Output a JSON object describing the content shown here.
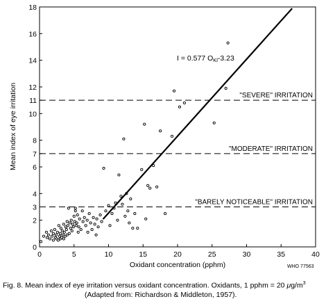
{
  "chart_data": {
    "type": "scatter",
    "xlabel": "Oxidant concentration (pphm)",
    "ylabel": "Mean index of eye irritation",
    "xlim": [
      0,
      40
    ],
    "ylim": [
      0,
      18
    ],
    "x_ticks": [
      0,
      5,
      10,
      15,
      20,
      25,
      30,
      35,
      40
    ],
    "y_ticks": [
      0,
      2,
      3,
      4,
      6,
      7,
      8,
      10,
      11,
      12,
      14,
      16,
      18
    ],
    "grid": false,
    "legend": "none",
    "regression_label": "I = 0.577 O",
    "regression_subscript": "Kl",
    "regression_tail": "-3.23",
    "regression_line": {
      "slope": 0.577,
      "intercept": -3.23,
      "x_start": 9.2,
      "x_end": 36.6
    },
    "thresholds": [
      {
        "y": 3,
        "label": "\"BARELY NOTICEABLE\" IRRITATION"
      },
      {
        "y": 7,
        "label": "\"MODERATE\" IRRITATION"
      },
      {
        "y": 11,
        "label": "\"SEVERE\" IRRITATION"
      }
    ],
    "watermark": "WHO 77563",
    "series": [
      {
        "points": [
          [
            0.2,
            0.4
          ],
          [
            0.6,
            0.8
          ],
          [
            1.0,
            1.1
          ],
          [
            1.1,
            0.7
          ],
          [
            1.3,
            0.9
          ],
          [
            1.5,
            0.6
          ],
          [
            1.7,
            1.2
          ],
          [
            1.8,
            0.8
          ],
          [
            2.0,
            1.0
          ],
          [
            2.0,
            0.5
          ],
          [
            2.2,
            1.3
          ],
          [
            2.3,
            0.7
          ],
          [
            2.4,
            0.9
          ],
          [
            2.5,
            0.6
          ],
          [
            2.6,
            1.1
          ],
          [
            2.7,
            0.5
          ],
          [
            2.8,
            1.6
          ],
          [
            2.9,
            0.8
          ],
          [
            3.0,
            1.0
          ],
          [
            3.0,
            0.6
          ],
          [
            3.1,
            1.4
          ],
          [
            3.2,
            0.7
          ],
          [
            3.3,
            1.2
          ],
          [
            3.4,
            0.9
          ],
          [
            3.5,
            1.7
          ],
          [
            3.5,
            0.6
          ],
          [
            3.6,
            1.1
          ],
          [
            3.7,
            0.8
          ],
          [
            3.8,
            1.5
          ],
          [
            3.9,
            1.3
          ],
          [
            4.0,
            1.9
          ],
          [
            4.0,
            0.9
          ],
          [
            4.1,
            1.6
          ],
          [
            4.2,
            2.9
          ],
          [
            4.3,
            1.0
          ],
          [
            4.4,
            1.8
          ],
          [
            4.5,
            1.4
          ],
          [
            4.6,
            2.0
          ],
          [
            4.7,
            1.2
          ],
          [
            4.8,
            1.7
          ],
          [
            4.9,
            1.5
          ],
          [
            5.0,
            2.3
          ],
          [
            5.1,
            1.9
          ],
          [
            5.2,
            2.9
          ],
          [
            5.2,
            2.7
          ],
          [
            5.3,
            1.6
          ],
          [
            5.4,
            1.8
          ],
          [
            5.5,
            2.4
          ],
          [
            5.6,
            1.1
          ],
          [
            5.7,
            1.5
          ],
          [
            5.8,
            2.1
          ],
          [
            6.0,
            1.3
          ],
          [
            6.2,
            2.7
          ],
          [
            6.3,
            1.9
          ],
          [
            6.5,
            2.2
          ],
          [
            6.7,
            1.6
          ],
          [
            6.9,
            2.0
          ],
          [
            7.0,
            1.1
          ],
          [
            7.2,
            2.5
          ],
          [
            7.4,
            1.8
          ],
          [
            7.6,
            1.3
          ],
          [
            7.8,
            2.2
          ],
          [
            8.0,
            1.7
          ],
          [
            8.2,
            0.9
          ],
          [
            8.3,
            2.1
          ],
          [
            8.5,
            1.5
          ],
          [
            8.8,
            2.4
          ],
          [
            9.0,
            1.9
          ],
          [
            9.3,
            5.9
          ],
          [
            9.6,
            2.7
          ],
          [
            10.0,
            3.1
          ],
          [
            10.2,
            1.6
          ],
          [
            10.5,
            2.5
          ],
          [
            10.8,
            2.9
          ],
          [
            11.0,
            3.3
          ],
          [
            11.3,
            2.0
          ],
          [
            11.5,
            5.4
          ],
          [
            11.8,
            3.8
          ],
          [
            12.0,
            3.2
          ],
          [
            12.2,
            8.1
          ],
          [
            12.4,
            2.3
          ],
          [
            12.6,
            4.0
          ],
          [
            12.8,
            2.7
          ],
          [
            13.0,
            1.8
          ],
          [
            13.2,
            3.6
          ],
          [
            13.5,
            1.4
          ],
          [
            13.8,
            2.5
          ],
          [
            14.2,
            1.4
          ],
          [
            14.8,
            5.8
          ],
          [
            15.2,
            9.2
          ],
          [
            15.4,
            2.1
          ],
          [
            15.7,
            4.6
          ],
          [
            16.0,
            4.4
          ],
          [
            16.5,
            6.1
          ],
          [
            17.0,
            4.5
          ],
          [
            17.5,
            8.7
          ],
          [
            18.2,
            2.5
          ],
          [
            19.2,
            8.3
          ],
          [
            19.5,
            11.7
          ],
          [
            20.3,
            10.5
          ],
          [
            21.0,
            10.8
          ],
          [
            25.3,
            9.3
          ],
          [
            27.0,
            11.9
          ],
          [
            27.3,
            15.3
          ]
        ]
      }
    ]
  },
  "caption": {
    "line1_prefix": "Fig. 8.  Mean index of eye irritation versus oxidant concentration.  Oxidants, 1 pphm = 20 ",
    "line1_mu": "μ",
    "line1_unit": "g/m",
    "line1_sup": "3",
    "line2": "(Adapted from: Richardson & Middleton, 1957)."
  }
}
